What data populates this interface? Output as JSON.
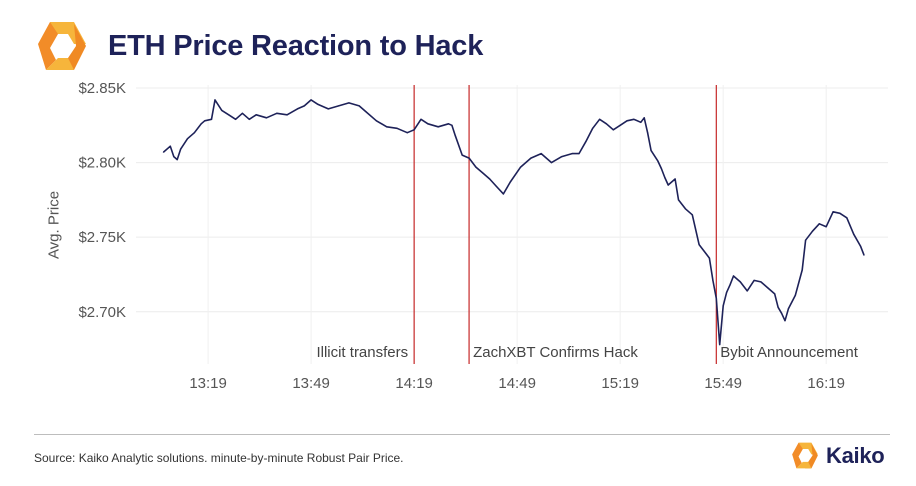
{
  "header": {
    "title": "ETH Price Reaction to Hack",
    "logo_icon": "kaiko-hexagon-icon"
  },
  "colors": {
    "title": "#1e2259",
    "line": "#1e2259",
    "event_line": "#c62828",
    "logo_orange": "#f28c28",
    "logo_yellow": "#f6b53b"
  },
  "chart_data": {
    "type": "line",
    "title": "ETH Price Reaction to Hack",
    "xlabel": "",
    "ylabel": "Avg. Price",
    "x_unit": "time (HH:MM)",
    "x_range": [
      "12:58",
      "16:37"
    ],
    "ylim": [
      2665,
      2852
    ],
    "grid": true,
    "legend": "none",
    "x_ticks": [
      "13:19",
      "13:49",
      "14:19",
      "14:49",
      "15:19",
      "15:49",
      "16:19"
    ],
    "y_ticks": [
      {
        "value": 2700,
        "label": "$2.70K"
      },
      {
        "value": 2750,
        "label": "$2.75K"
      },
      {
        "value": 2800,
        "label": "$2.80K"
      },
      {
        "value": 2850,
        "label": "$2.85K"
      }
    ],
    "events": [
      {
        "time": "14:19",
        "label": "Illicit transfers"
      },
      {
        "time": "14:35",
        "label": "ZachXBT Confirms Hack"
      },
      {
        "time": "15:47",
        "label": "Bybit Announcement"
      }
    ],
    "series": [
      {
        "values": [
          [
            "13:06",
            2807
          ],
          [
            "13:08",
            2811
          ],
          [
            "13:09",
            2804
          ],
          [
            "13:10",
            2802
          ],
          [
            "13:11",
            2809
          ],
          [
            "13:13",
            2816
          ],
          [
            "13:15",
            2820
          ],
          [
            "13:17",
            2826
          ],
          [
            "13:18",
            2828
          ],
          [
            "13:20",
            2829
          ],
          [
            "13:21",
            2842
          ],
          [
            "13:23",
            2835
          ],
          [
            "13:25",
            2832
          ],
          [
            "13:27",
            2829
          ],
          [
            "13:29",
            2833
          ],
          [
            "13:31",
            2829
          ],
          [
            "13:33",
            2832
          ],
          [
            "13:36",
            2830
          ],
          [
            "13:39",
            2833
          ],
          [
            "13:42",
            2832
          ],
          [
            "13:45",
            2836
          ],
          [
            "13:47",
            2838
          ],
          [
            "13:49",
            2842
          ],
          [
            "13:51",
            2839
          ],
          [
            "13:54",
            2836
          ],
          [
            "13:57",
            2838
          ],
          [
            "14:00",
            2840
          ],
          [
            "14:03",
            2838
          ],
          [
            "14:05",
            2834
          ],
          [
            "14:08",
            2828
          ],
          [
            "14:11",
            2824
          ],
          [
            "14:14",
            2823
          ],
          [
            "14:17",
            2820
          ],
          [
            "14:19",
            2822
          ],
          [
            "14:21",
            2829
          ],
          [
            "14:23",
            2826
          ],
          [
            "14:26",
            2824
          ],
          [
            "14:29",
            2826
          ],
          [
            "14:30",
            2825
          ],
          [
            "14:31",
            2818
          ],
          [
            "14:33",
            2805
          ],
          [
            "14:35",
            2803
          ],
          [
            "14:37",
            2797
          ],
          [
            "14:39",
            2793
          ],
          [
            "14:41",
            2789
          ],
          [
            "14:43",
            2784
          ],
          [
            "14:45",
            2779
          ],
          [
            "14:47",
            2787
          ],
          [
            "14:50",
            2797
          ],
          [
            "14:53",
            2803
          ],
          [
            "14:56",
            2806
          ],
          [
            "14:59",
            2800
          ],
          [
            "15:02",
            2804
          ],
          [
            "15:05",
            2806
          ],
          [
            "15:07",
            2806
          ],
          [
            "15:09",
            2814
          ],
          [
            "15:11",
            2823
          ],
          [
            "15:13",
            2829
          ],
          [
            "15:15",
            2826
          ],
          [
            "15:17",
            2822
          ],
          [
            "15:19",
            2825
          ],
          [
            "15:21",
            2828
          ],
          [
            "15:23",
            2829
          ],
          [
            "15:25",
            2827
          ],
          [
            "15:26",
            2830
          ],
          [
            "15:27",
            2820
          ],
          [
            "15:28",
            2808
          ],
          [
            "15:30",
            2801
          ],
          [
            "15:31",
            2796
          ],
          [
            "15:32",
            2790
          ],
          [
            "15:33",
            2785
          ],
          [
            "15:35",
            2789
          ],
          [
            "15:36",
            2775
          ],
          [
            "15:38",
            2769
          ],
          [
            "15:40",
            2765
          ],
          [
            "15:42",
            2745
          ],
          [
            "15:44",
            2739
          ],
          [
            "15:45",
            2736
          ],
          [
            "15:46",
            2721
          ],
          [
            "15:47",
            2709
          ],
          [
            "15:48",
            2678
          ],
          [
            "15:49",
            2704
          ],
          [
            "15:50",
            2713
          ],
          [
            "15:51",
            2718
          ],
          [
            "15:52",
            2724
          ],
          [
            "15:54",
            2720
          ],
          [
            "15:56",
            2714
          ],
          [
            "15:58",
            2721
          ],
          [
            "16:00",
            2720
          ],
          [
            "16:02",
            2716
          ],
          [
            "16:04",
            2712
          ],
          [
            "16:05",
            2703
          ],
          [
            "16:06",
            2699
          ],
          [
            "16:07",
            2694
          ],
          [
            "16:08",
            2702
          ],
          [
            "16:10",
            2711
          ],
          [
            "16:12",
            2728
          ],
          [
            "16:13",
            2748
          ],
          [
            "16:15",
            2754
          ],
          [
            "16:17",
            2759
          ],
          [
            "16:19",
            2757
          ],
          [
            "16:21",
            2767
          ],
          [
            "16:23",
            2766
          ],
          [
            "16:25",
            2763
          ],
          [
            "16:27",
            2752
          ],
          [
            "16:29",
            2744
          ],
          [
            "16:30",
            2738
          ]
        ]
      }
    ]
  },
  "footer": {
    "source": "Source: Kaiko Analytic solutions. minute-by-minute Robust Pair Price.",
    "brand_name": "Kaiko",
    "brand_icon": "kaiko-hexagon-icon"
  }
}
